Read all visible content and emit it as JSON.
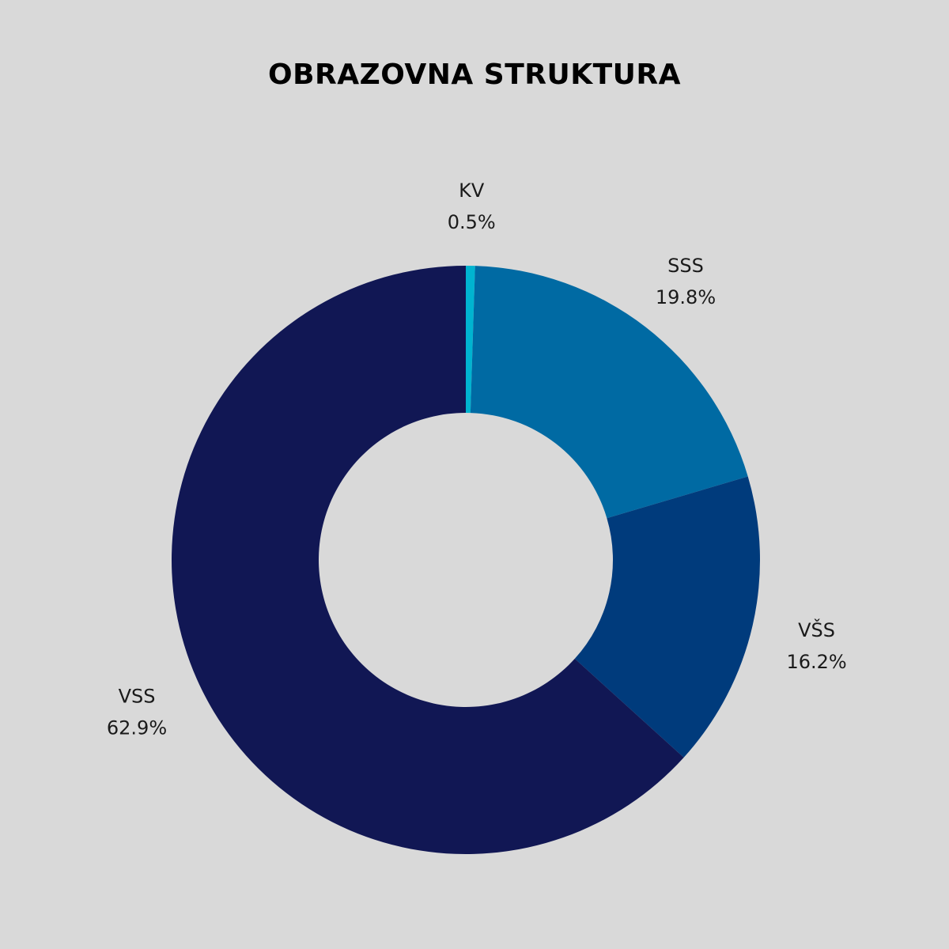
{
  "chart_data": {
    "type": "pie",
    "variant": "donut",
    "title": "OBRAZOVNA STRUKTURA",
    "slices": [
      {
        "name": "KV",
        "value": 0.5,
        "value_label": "0.5%",
        "color": "#00b4d0"
      },
      {
        "name": "SSS",
        "value": 19.8,
        "value_label": "19.8%",
        "color": "#006aa3"
      },
      {
        "name": "VŠS",
        "value": 16.2,
        "value_label": "16.2%",
        "color": "#003b7c"
      },
      {
        "name": "VSS",
        "value": 62.9,
        "value_label": "62.9%",
        "color": "#111754"
      }
    ],
    "start": "top",
    "direction": "clockwise",
    "legend": "none",
    "background_color": "#d9d9d9"
  }
}
